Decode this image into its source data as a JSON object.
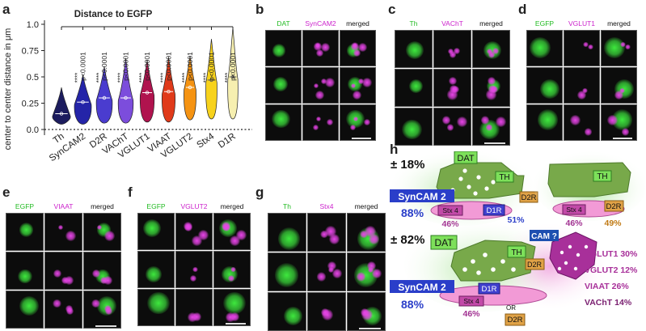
{
  "panels": {
    "a": "a",
    "b": "b",
    "c": "c",
    "d": "d",
    "e": "e",
    "f": "f",
    "g": "g",
    "h": "h"
  },
  "chart_data": {
    "type": "violin",
    "title": "Distance to EGFP",
    "xlabel": "",
    "ylabel": "center to center distance in μm",
    "ylim": [
      0.0,
      1.0
    ],
    "yticks": [
      0.0,
      0.25,
      0.5,
      0.75,
      1.0
    ],
    "yticklabels": [
      "0.0",
      "0.25",
      "0.5",
      "0.75",
      "1.0"
    ],
    "grid": false,
    "categories": [
      "Th",
      "SynCAM2",
      "D2R",
      "VAChT",
      "VGLUT1",
      "VIAAT",
      "VGLUT2",
      "Stx4",
      "D1R"
    ],
    "colors": [
      "#1c1c5e",
      "#2424a8",
      "#4a3ccf",
      "#7c4ddc",
      "#b0134e",
      "#e03a1a",
      "#f59312",
      "#f7d21c",
      "#f6efb0"
    ],
    "medians": [
      0.15,
      0.26,
      0.3,
      0.3,
      0.35,
      0.36,
      0.4,
      0.47,
      0.5
    ],
    "upper_extent": [
      0.4,
      0.52,
      0.6,
      0.68,
      0.66,
      0.69,
      0.7,
      0.86,
      0.97
    ],
    "lower_extent": [
      0.05,
      0.05,
      0.06,
      0.06,
      0.07,
      0.07,
      0.09,
      0.1,
      0.1
    ],
    "significance_stars": [
      "****",
      "****",
      "****",
      "****",
      "****",
      "****",
      "****",
      "****"
    ],
    "pvalues": [
      "p<0.0001",
      "p<0.0001",
      "p<0.0001",
      "p<0.0001",
      "p<0.0001",
      "p<0.0001",
      "p<0.0001",
      "p<0.0001"
    ]
  },
  "images": {
    "b": {
      "labels": [
        "DAT",
        "SynCAM2",
        "merged"
      ],
      "colors": [
        "#22bb22",
        "#cc22cc",
        "#111111"
      ]
    },
    "c": {
      "labels": [
        "Th",
        "VAChT",
        "merged"
      ],
      "colors": [
        "#22bb22",
        "#cc22cc",
        "#111111"
      ]
    },
    "d": {
      "labels": [
        "EGFP",
        "VGLUT1",
        "merged"
      ],
      "colors": [
        "#22bb22",
        "#cc22cc",
        "#111111"
      ]
    },
    "e": {
      "labels": [
        "EGFP",
        "VIAAT",
        "merged"
      ],
      "colors": [
        "#22bb22",
        "#cc22cc",
        "#111111"
      ]
    },
    "f": {
      "labels": [
        "EGFP",
        "VGLUT2",
        "merged"
      ],
      "colors": [
        "#22bb22",
        "#cc22cc",
        "#111111"
      ]
    },
    "g": {
      "labels": [
        "Th",
        "Stx4",
        "merged"
      ],
      "colors": [
        "#22bb22",
        "#cc22cc",
        "#111111"
      ]
    }
  },
  "diagram": {
    "pct_top": "± 18%",
    "pct_bottom": "± 82%",
    "dat": "DAT",
    "th": "TH",
    "syncam2": "SynCAM 2",
    "syncam_pct": "88%",
    "d2r": "D2R",
    "d1r": "D1R",
    "stx4": "Stx 4",
    "stx_pct": "46%",
    "d1r_pct": "51%",
    "d2r_pct": "49%",
    "cam": "CAM ?",
    "or_label": "OR",
    "vglut1": "VGLUT1 30%",
    "vglut2": "VGLUT2 12%",
    "viaat": "VIAAT 26%",
    "vacht": "VAChT 14%"
  }
}
